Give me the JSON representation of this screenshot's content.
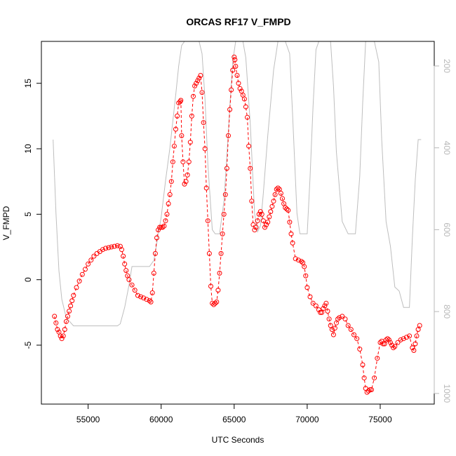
{
  "chart_data": {
    "type": "line",
    "title": "ORCAS RF17 V_FMPD",
    "xlabel": "UTC Seconds",
    "ylabel": "V_FMPD",
    "xlim": [
      51800,
      78700
    ],
    "ylim": [
      -9.5,
      18.2
    ],
    "x_ticks": [
      55000,
      60000,
      65000,
      70000,
      75000
    ],
    "x_tick_labels": [
      "55000",
      "60000",
      "65000",
      "70000",
      "75000"
    ],
    "y_ticks": [
      -5,
      0,
      5,
      10,
      15
    ],
    "y_tick_labels": [
      "-5",
      "0",
      "5",
      "10",
      "15"
    ],
    "y2_ticks": [
      200,
      400,
      600,
      800,
      1000
    ],
    "y2_tick_labels": [
      "200",
      "400",
      "600",
      "800",
      "1000"
    ],
    "y2lim": [
      1026,
      140
    ],
    "grid": false,
    "colors": {
      "primary": "#ff0000",
      "secondary": "#bebebe",
      "axis": "#000000",
      "right_axis": "#b8b8b8"
    },
    "series": [
      {
        "role": "primary",
        "marker": "circle-open",
        "line": "dashed",
        "x": [
          52700,
          52800,
          52900,
          53000,
          53100,
          53200,
          53300,
          53400,
          53500,
          53600,
          53700,
          53800,
          53900,
          54000,
          54200,
          54400,
          54600,
          54800,
          55000,
          55200,
          55400,
          55600,
          55800,
          56000,
          56200,
          56400,
          56600,
          56800,
          57000,
          57200,
          57300,
          57400,
          57500,
          57600,
          57700,
          57800,
          58000,
          58200,
          58400,
          58600,
          58800,
          59000,
          59200,
          59300,
          59400,
          59500,
          59600,
          59700,
          59800,
          59900,
          60000,
          60100,
          60200,
          60300,
          60400,
          60500,
          60600,
          60700,
          60800,
          60900,
          61000,
          61100,
          61200,
          61300,
          61350,
          61400,
          61500,
          61600,
          61700,
          61800,
          61900,
          62000,
          62100,
          62200,
          62300,
          62400,
          62500,
          62600,
          62700,
          62800,
          62900,
          63000,
          63100,
          63200,
          63300,
          63400,
          63500,
          63600,
          63700,
          63800,
          63900,
          64000,
          64100,
          64200,
          64300,
          64400,
          64500,
          64600,
          64700,
          64800,
          64900,
          65000,
          65050,
          65100,
          65200,
          65300,
          65400,
          65500,
          65600,
          65700,
          65800,
          65900,
          66000,
          66100,
          66200,
          66300,
          66400,
          66500,
          66600,
          66700,
          66800,
          66900,
          67000,
          67100,
          67200,
          67300,
          67400,
          67500,
          67600,
          67700,
          67800,
          67900,
          68000,
          68100,
          68200,
          68300,
          68400,
          68500,
          68600,
          68700,
          68800,
          68900,
          69000,
          69200,
          69400,
          69600,
          69700,
          69800,
          69900,
          70000,
          70200,
          70400,
          70600,
          70800,
          70900,
          71000,
          71100,
          71200,
          71300,
          71400,
          71500,
          71600,
          71700,
          71800,
          71900,
          72000,
          72100,
          72200,
          72400,
          72600,
          72800,
          73000,
          73200,
          73400,
          73600,
          73800,
          73900,
          74000,
          74100,
          74200,
          74300,
          74400,
          74600,
          74800,
          75000,
          75100,
          75200,
          75300,
          75400,
          75500,
          75600,
          75700,
          75800,
          75900,
          76000,
          76200,
          76400,
          76600,
          76800,
          77000,
          77200,
          77300,
          77400,
          77500,
          77600,
          77700
        ],
        "y": [
          -2.8,
          -3.3,
          -3.8,
          -4.0,
          -4.3,
          -4.5,
          -4.3,
          -3.8,
          -3.2,
          -2.8,
          -2.4,
          -2.0,
          -1.6,
          -1.2,
          -0.6,
          -0.1,
          0.4,
          0.8,
          1.2,
          1.5,
          1.8,
          2.0,
          2.15,
          2.3,
          2.4,
          2.45,
          2.5,
          2.55,
          2.6,
          2.55,
          2.3,
          1.8,
          1.2,
          0.7,
          0.3,
          0.0,
          -0.4,
          -0.8,
          -1.2,
          -1.3,
          -1.4,
          -1.5,
          -1.6,
          -1.7,
          -1.0,
          0.5,
          2.0,
          3.2,
          3.8,
          4.0,
          4.0,
          4.0,
          4.1,
          4.5,
          5.0,
          5.8,
          6.5,
          7.5,
          9.0,
          10.2,
          11.5,
          12.5,
          13.5,
          13.6,
          13.7,
          11.0,
          9.0,
          7.3,
          7.5,
          8.0,
          9.0,
          10.5,
          12.5,
          14.0,
          14.8,
          15.0,
          15.2,
          15.4,
          15.6,
          14.3,
          12.0,
          10.0,
          7.0,
          4.5,
          2.0,
          -0.5,
          -1.8,
          -1.9,
          -1.8,
          -1.7,
          -0.8,
          0.5,
          2.0,
          3.5,
          5.0,
          6.5,
          8.5,
          11.0,
          13.0,
          14.5,
          16.0,
          17.0,
          16.8,
          16.3,
          15.6,
          15.0,
          14.6,
          14.4,
          14.1,
          13.8,
          13.2,
          12.4,
          10.2,
          8.5,
          6.0,
          4.2,
          3.8,
          4.0,
          4.5,
          5.0,
          5.2,
          5.0,
          4.5,
          4.0,
          4.2,
          4.4,
          4.8,
          5.2,
          5.6,
          6.0,
          6.5,
          6.9,
          7.0,
          6.9,
          6.6,
          6.2,
          5.8,
          5.5,
          5.4,
          5.3,
          4.4,
          3.5,
          2.8,
          1.6,
          1.5,
          1.4,
          1.3,
          1.0,
          0.3,
          -0.6,
          -1.3,
          -1.8,
          -2.0,
          -2.3,
          -2.5,
          -2.5,
          -2.2,
          -2.0,
          -1.8,
          -2.4,
          -3.0,
          -3.5,
          -3.8,
          -4.2,
          -3.7,
          -3.3,
          -3.0,
          -2.9,
          -2.8,
          -3.0,
          -3.5,
          -3.8,
          -4.2,
          -4.5,
          -5.3,
          -6.5,
          -7.5,
          -8.3,
          -8.6,
          -8.5,
          -8.4,
          -8.4,
          -7.5,
          -6.0,
          -4.8,
          -4.7,
          -4.9,
          -4.9,
          -4.6,
          -4.5,
          -4.6,
          -4.8,
          -5.0,
          -5.2,
          -5.1,
          -4.8,
          -4.6,
          -4.5,
          -4.4,
          -4.3,
          -5.2,
          -5.4,
          -4.9,
          -4.3,
          -3.8,
          -3.5
        ]
      },
      {
        "role": "secondary",
        "axis": "right",
        "line": "solid",
        "x": [
          52600,
          52800,
          53000,
          53200,
          53500,
          54000,
          55000,
          56000,
          57000,
          57200,
          57500,
          57800,
          58000,
          59000,
          59200,
          59500,
          60000,
          60300,
          60600,
          61000,
          61200,
          61400,
          61600,
          61800,
          62000,
          62100,
          62300,
          62600,
          62800,
          63000,
          63200,
          63500,
          63700,
          64000,
          64300,
          64500,
          64700,
          64900,
          65100,
          65300,
          65600,
          65800,
          66100,
          66400,
          66600,
          66800,
          67000,
          67300,
          67700,
          68000,
          68200,
          68500,
          68800,
          69000,
          69300,
          69500,
          69700,
          70000,
          70200,
          70400,
          70600,
          70800,
          71000,
          71300,
          71600,
          71800,
          72000,
          72400,
          72800,
          73000,
          73300,
          73600,
          73800,
          74000,
          74200,
          74400,
          74600,
          74900,
          75100,
          75400,
          75700,
          76000,
          76300,
          76600,
          76800,
          77000,
          77200,
          77400,
          77600,
          77800
        ],
        "y": [
          380,
          560,
          700,
          770,
          815,
          835,
          835,
          835,
          835,
          830,
          790,
          735,
          690,
          690,
          690,
          675,
          570,
          480,
          400,
          270,
          200,
          150,
          140,
          140,
          140,
          140,
          140,
          140,
          170,
          280,
          440,
          600,
          610,
          610,
          530,
          420,
          300,
          190,
          140,
          140,
          140,
          180,
          340,
          560,
          605,
          590,
          510,
          370,
          210,
          140,
          140,
          140,
          170,
          320,
          560,
          610,
          610,
          610,
          470,
          300,
          160,
          140,
          140,
          140,
          140,
          250,
          410,
          580,
          610,
          610,
          610,
          470,
          290,
          140,
          140,
          140,
          140,
          190,
          380,
          580,
          640,
          740,
          750,
          790,
          790,
          790,
          620,
          480,
          380,
          380
        ]
      }
    ]
  }
}
